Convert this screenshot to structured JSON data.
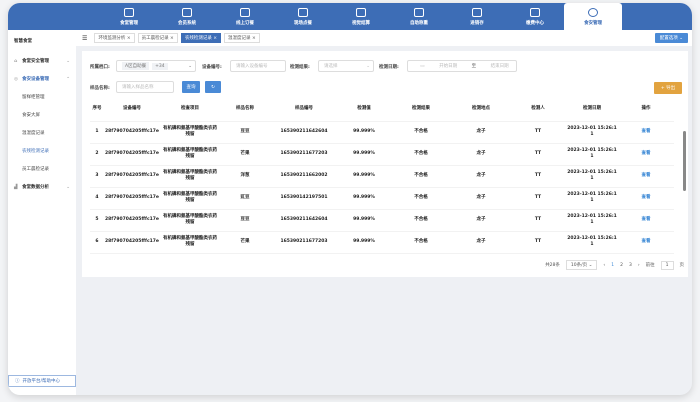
{
  "topnav": [
    {
      "label": "食堂管理",
      "icon": "canteen-icon"
    },
    {
      "label": "会员系统",
      "icon": "diamond-icon"
    },
    {
      "label": "线上订餐",
      "icon": "order-icon"
    },
    {
      "label": "现场点餐",
      "icon": "dish-icon"
    },
    {
      "label": "视觉结算",
      "icon": "camera-icon"
    },
    {
      "label": "自助称重",
      "icon": "scale-icon"
    },
    {
      "label": "进销存",
      "icon": "warehouse-icon"
    },
    {
      "label": "缴费中心",
      "icon": "wallet-icon"
    },
    {
      "label": "食安管理",
      "icon": "safety-icon",
      "active": true
    }
  ],
  "sidebar": {
    "brand": "智慧食堂",
    "groups": [
      {
        "label": "食堂安全管理"
      },
      {
        "label": "食安设备管理",
        "items": [
          "留样柜管理",
          "食安大屏",
          "温湿度记录",
          "农残检测记录",
          "员工晨检记录"
        ],
        "active": "农残检测记录"
      },
      {
        "label": "食堂数据分析"
      }
    ],
    "help": "开放平台/帮助中心"
  },
  "tabs": [
    "环境监测分析",
    "员工晨检记录",
    "农残检测记录",
    "温湿度记录"
  ],
  "config_label": "配置选项",
  "filters": {
    "stall_label": "所属档口:",
    "stall_chip": "A区自助餐",
    "stall_more": "+34",
    "device_label": "设备编号:",
    "device_placeholder": "请输入设备编号",
    "result_label": "检测结果:",
    "result_placeholder": "请选择",
    "date_label": "检测日期:",
    "date_start": "开始日期",
    "date_sep": "至",
    "date_end": "结束日期",
    "sample_label": "样品名称:",
    "sample_placeholder": "请输入样品名称",
    "query": "查询",
    "reset": "↻",
    "export": "+ 导出"
  },
  "table": {
    "headers": [
      "序号",
      "设备编号",
      "检查项目",
      "样品名称",
      "样品编号",
      "检测值",
      "检测结果",
      "检测地点",
      "检测人",
      "检测日期",
      "操作"
    ],
    "rows": [
      [
        "1",
        "28f790704205fffc17e",
        "有机磷和氨基甲酸酯类农药残留",
        "豆豆",
        "165390211642604",
        "99.999%",
        "不合格",
        "龙子",
        "TT",
        "2023-12-01 15:26:11",
        "查看"
      ],
      [
        "2",
        "28f790704205fffc17e",
        "有机磷和氨基甲酸酯类农药残留",
        "芒果",
        "165390211677203",
        "99.999%",
        "不合格",
        "龙子",
        "TT",
        "2023-12-01 15:26:11",
        "查看"
      ],
      [
        "3",
        "28f790704205fffc17e",
        "有机磷和氨基甲酸酯类农药残留",
        "洋葱",
        "165390211662002",
        "99.999%",
        "不合格",
        "龙子",
        "TT",
        "2023-12-01 15:26:11",
        "查看"
      ],
      [
        "4",
        "28f790704205fffc17e",
        "有机磷和氨基甲酸酯类农药残留",
        "豇豆",
        "165390142197501",
        "99.999%",
        "不合格",
        "龙子",
        "TT",
        "2023-12-01 15:26:11",
        "查看"
      ],
      [
        "5",
        "28f790704205fffc17e",
        "有机磷和氨基甲酸酯类农药残留",
        "豆豆",
        "165390211642604",
        "99.999%",
        "不合格",
        "龙子",
        "TT",
        "2023-12-01 15:26:11",
        "查看"
      ],
      [
        "6",
        "28f790704205fffc17e",
        "有机磷和氨基甲酸酯类农药残留",
        "芒果",
        "165390211677203",
        "99.999%",
        "不合格",
        "龙子",
        "TT",
        "2023-12-01 15:26:11",
        "查看"
      ]
    ]
  },
  "pagination": {
    "total": "共28条",
    "size": "10条/页",
    "prev": "‹",
    "pages": [
      "1",
      "2",
      "3"
    ],
    "next": "›",
    "goto": "前往",
    "goto_value": "1",
    "page_unit": "页"
  }
}
